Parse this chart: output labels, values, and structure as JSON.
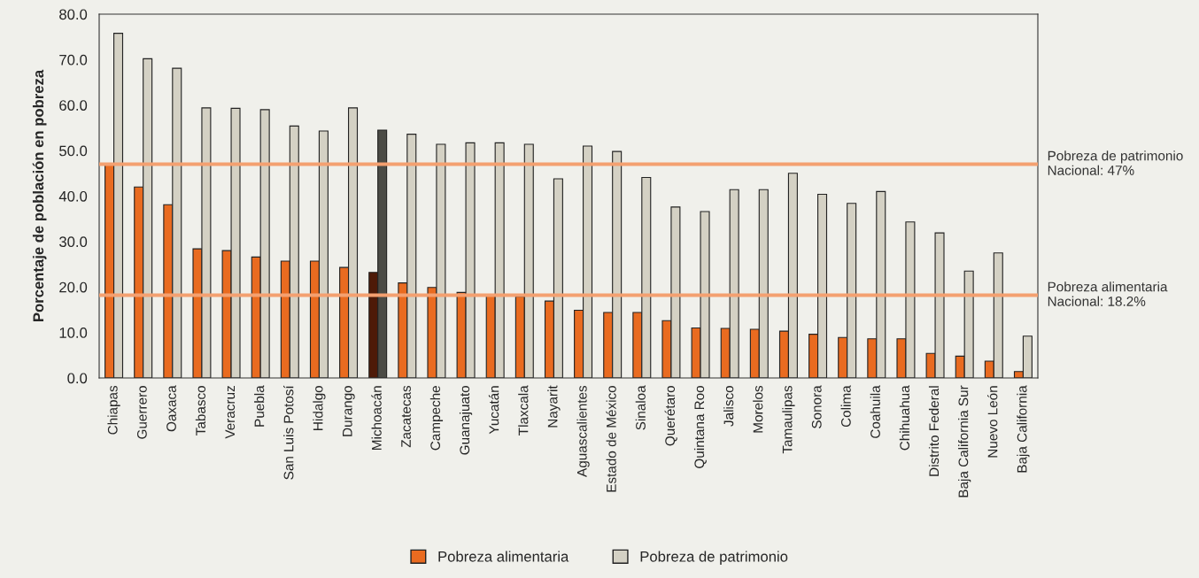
{
  "chart_data": {
    "type": "bar",
    "ylabel": "Porcentaje de población en pobreza",
    "categories": [
      "Chiapas",
      "Guerrero",
      "Oaxaca",
      "Tabasco",
      "Veracruz",
      "Puebla",
      "San Luis Potosí",
      "Hidalgo",
      "Durango",
      "Michoacán",
      "Zacatecas",
      "Campeche",
      "Guanajuato",
      "Yucatán",
      "Tlaxcala",
      "Nayarit",
      "Aguascalientes",
      "Estado de México",
      "Sinaloa",
      "Querétaro",
      "Quintana Roo",
      "Jalisco",
      "Morelos",
      "Tamaulipas",
      "Sonora",
      "Colima",
      "Coahuila",
      "Chihuahua",
      "Distrito Federal",
      "Baja California Sur",
      "Nuevo León",
      "Baja California"
    ],
    "series": [
      {
        "name": "Pobreza alimentaria",
        "color": "#e96b20",
        "colors": [
          "#e96b20",
          "#e96b20",
          "#e96b20",
          "#e96b20",
          "#e96b20",
          "#e96b20",
          "#e96b20",
          "#e96b20",
          "#e96b20",
          "#4e1a08",
          "#e96b20",
          "#e96b20",
          "#e96b20",
          "#e96b20",
          "#e96b20",
          "#e96b20",
          "#e96b20",
          "#e96b20",
          "#e96b20",
          "#e96b20",
          "#e96b20",
          "#e96b20",
          "#e96b20",
          "#e96b20",
          "#e96b20",
          "#e96b20",
          "#e96b20",
          "#e96b20",
          "#e96b20",
          "#e96b20",
          "#e96b20",
          "#e96b20"
        ],
        "values": [
          46.9,
          42.0,
          38.1,
          28.4,
          28.0,
          26.6,
          25.7,
          25.7,
          24.3,
          23.2,
          20.9,
          19.9,
          18.8,
          18.1,
          17.9,
          16.9,
          14.9,
          14.4,
          14.4,
          12.6,
          11.0,
          10.9,
          10.7,
          10.3,
          9.6,
          8.9,
          8.6,
          8.6,
          5.4,
          4.8,
          3.7,
          1.4
        ]
      },
      {
        "name": "Pobreza de patrimonio",
        "color": "#d4d1c4",
        "colors": [
          "#d4d1c4",
          "#d4d1c4",
          "#d4d1c4",
          "#d4d1c4",
          "#d4d1c4",
          "#d4d1c4",
          "#d4d1c4",
          "#d4d1c4",
          "#d4d1c4",
          "#4b4b45",
          "#d4d1c4",
          "#d4d1c4",
          "#d4d1c4",
          "#d4d1c4",
          "#d4d1c4",
          "#d4d1c4",
          "#d4d1c4",
          "#d4d1c4",
          "#d4d1c4",
          "#d4d1c4",
          "#d4d1c4",
          "#d4d1c4",
          "#d4d1c4",
          "#d4d1c4",
          "#d4d1c4",
          "#d4d1c4",
          "#d4d1c4",
          "#d4d1c4",
          "#d4d1c4",
          "#d4d1c4",
          "#d4d1c4",
          "#d4d1c4"
        ],
        "values": [
          75.8,
          70.2,
          68.1,
          59.4,
          59.3,
          59.0,
          55.4,
          54.3,
          59.4,
          54.5,
          53.6,
          51.4,
          51.7,
          51.7,
          51.4,
          43.8,
          51.0,
          49.8,
          44.1,
          37.6,
          36.6,
          41.4,
          41.4,
          45.0,
          40.4,
          38.4,
          41.0,
          34.3,
          31.9,
          23.5,
          27.5,
          9.2
        ]
      }
    ],
    "ylim": [
      0,
      80
    ],
    "yticks": [
      {
        "value": 0,
        "label": "0.0"
      },
      {
        "value": 10,
        "label": "10.0"
      },
      {
        "value": 20,
        "label": "20.0"
      },
      {
        "value": 30,
        "label": "30.0"
      },
      {
        "value": 40,
        "label": "40.0"
      },
      {
        "value": 50,
        "label": "50.0"
      },
      {
        "value": 60,
        "label": "60.0"
      },
      {
        "value": 70,
        "label": "70.0"
      },
      {
        "value": 80,
        "label": "80.0"
      }
    ],
    "ref_lines": [
      {
        "axis": "y",
        "value": 47,
        "label": "Pobreza de patrimonio\nNacional: 47%",
        "color": "#f4a070"
      },
      {
        "axis": "y",
        "value": 18.2,
        "label": "Pobreza alimentaria\nNacional: 18.2%",
        "color": "#f4a070"
      }
    ],
    "grid": false,
    "legend": "bottom"
  }
}
